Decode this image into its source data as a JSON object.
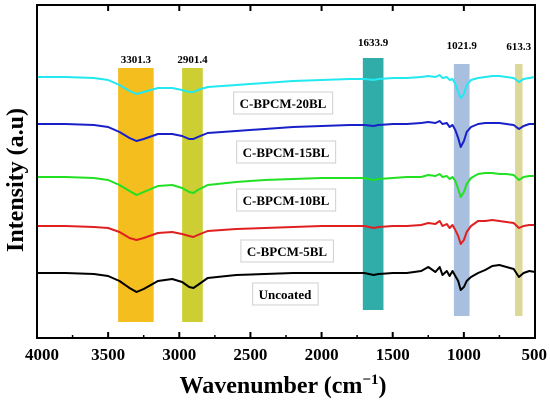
{
  "chart_data": {
    "type": "line",
    "title": "",
    "xlabel": "Wavenumber (cm",
    "xlabel_sup": "−1",
    "xlabel_close": ")",
    "ylabel": "Intensity (a.u)",
    "xlim": [
      4000,
      500
    ],
    "x_reversed": true,
    "y_ticks_shown": false,
    "x_ticks": [
      4000,
      3500,
      3000,
      2500,
      2000,
      1500,
      1000,
      500
    ],
    "annotations": [
      {
        "label": "3301.3",
        "from": 3430,
        "to": 3180,
        "color": "#f2b705"
      },
      {
        "label": "2901.4",
        "from": 2980,
        "to": 2835,
        "color": "#c8c81e"
      },
      {
        "label": "1633.9",
        "from": 1710,
        "to": 1565,
        "color": "#1aa3a0"
      },
      {
        "label": "1021.9",
        "from": 1070,
        "to": 960,
        "color": "#9fb8dc"
      },
      {
        "label": "613.3",
        "from": 640,
        "to": 588,
        "color": "#d8d48c"
      }
    ],
    "series": [
      {
        "name": "Uncoated",
        "color": "#000000",
        "x": [
          4000,
          3800,
          3600,
          3500,
          3420,
          3350,
          3301,
          3250,
          3150,
          3050,
          2980,
          2930,
          2901,
          2870,
          2800,
          2600,
          2400,
          2200,
          2000,
          1800,
          1700,
          1634,
          1600,
          1500,
          1400,
          1300,
          1250,
          1200,
          1170,
          1150,
          1120,
          1100,
          1080,
          1060,
          1040,
          1022,
          1000,
          980,
          950,
          900,
          850,
          800,
          750,
          700,
          650,
          613,
          580,
          540,
          500
        ],
        "y": [
          0,
          0,
          -1,
          -3,
          -8,
          -15,
          -19,
          -16,
          -8,
          -6,
          -9,
          -14,
          -15,
          -12,
          -5,
          -2,
          -1,
          0,
          0,
          0,
          0,
          -2,
          -1,
          0,
          0,
          2,
          6,
          1,
          6,
          -2,
          2,
          -3,
          2,
          -3,
          -8,
          -17,
          -14,
          -8,
          -4,
          0,
          3,
          7,
          8,
          6,
          4,
          -4,
          0,
          2,
          1
        ]
      },
      {
        "name": "C-BPCM-5BL",
        "color": "#e02020",
        "x": [
          4000,
          3800,
          3600,
          3500,
          3420,
          3350,
          3301,
          3250,
          3150,
          3050,
          2980,
          2930,
          2901,
          2870,
          2800,
          2600,
          2400,
          2200,
          2000,
          1800,
          1700,
          1634,
          1600,
          1500,
          1400,
          1300,
          1250,
          1200,
          1170,
          1150,
          1120,
          1100,
          1080,
          1060,
          1040,
          1022,
          1000,
          980,
          950,
          900,
          850,
          800,
          750,
          700,
          650,
          613,
          580,
          540,
          500
        ],
        "y": [
          0,
          0,
          -1,
          -2,
          -6,
          -12,
          -14,
          -12,
          -7,
          -6,
          -8,
          -10,
          -11,
          -9,
          -5,
          -3,
          -2,
          -1,
          0,
          0,
          0,
          -2,
          -1,
          0,
          0,
          1,
          3,
          2,
          5,
          0,
          2,
          -2,
          1,
          -4,
          -10,
          -18,
          -14,
          -6,
          0,
          5,
          5,
          6,
          5,
          4,
          3,
          -2,
          0,
          1,
          1
        ]
      },
      {
        "name": "C-BPCM-10BL",
        "color": "#22e022",
        "x": [
          4000,
          3800,
          3600,
          3500,
          3420,
          3350,
          3301,
          3250,
          3150,
          3050,
          2980,
          2930,
          2901,
          2870,
          2800,
          2600,
          2400,
          2200,
          2000,
          1800,
          1700,
          1634,
          1600,
          1500,
          1400,
          1300,
          1250,
          1200,
          1170,
          1150,
          1120,
          1100,
          1080,
          1060,
          1040,
          1022,
          1000,
          980,
          950,
          900,
          850,
          800,
          750,
          700,
          650,
          613,
          580,
          540,
          500
        ],
        "y": [
          0,
          0,
          -1,
          -3,
          -8,
          -14,
          -18,
          -15,
          -9,
          -8,
          -11,
          -15,
          -16,
          -13,
          -8,
          -5,
          -3,
          -2,
          -1,
          -1,
          -1,
          -3,
          -2,
          -1,
          0,
          0,
          2,
          1,
          3,
          0,
          1,
          -2,
          0,
          -4,
          -12,
          -20,
          -15,
          -7,
          -1,
          3,
          4,
          4,
          3,
          3,
          2,
          -3,
          0,
          1,
          1
        ]
      },
      {
        "name": "C-BPCM-15BL",
        "color": "#1a20c8",
        "x": [
          4000,
          3800,
          3600,
          3500,
          3420,
          3350,
          3301,
          3250,
          3150,
          3050,
          2980,
          2930,
          2901,
          2870,
          2800,
          2600,
          2400,
          2200,
          2000,
          1800,
          1700,
          1634,
          1600,
          1500,
          1400,
          1300,
          1250,
          1200,
          1170,
          1150,
          1120,
          1100,
          1080,
          1060,
          1040,
          1022,
          1000,
          980,
          950,
          900,
          850,
          800,
          750,
          700,
          650,
          613,
          580,
          540,
          500
        ],
        "y": [
          0,
          0,
          -1,
          -3,
          -8,
          -14,
          -17,
          -15,
          -10,
          -10,
          -12,
          -15,
          -15,
          -13,
          -9,
          -7,
          -5,
          -3,
          -2,
          -1,
          -1,
          -2,
          -1,
          0,
          0,
          1,
          2,
          1,
          3,
          0,
          1,
          -3,
          -1,
          -6,
          -14,
          -23,
          -17,
          -8,
          -3,
          0,
          1,
          1,
          1,
          0,
          -1,
          -5,
          -2,
          0,
          0
        ]
      },
      {
        "name": "C-BPCM-20BL",
        "color": "#22e8f0",
        "x": [
          4000,
          3800,
          3600,
          3500,
          3420,
          3350,
          3301,
          3250,
          3150,
          3050,
          2980,
          2930,
          2901,
          2870,
          2800,
          2600,
          2400,
          2200,
          2000,
          1800,
          1700,
          1634,
          1600,
          1500,
          1400,
          1300,
          1250,
          1200,
          1170,
          1150,
          1120,
          1100,
          1080,
          1060,
          1040,
          1022,
          1000,
          980,
          950,
          900,
          850,
          800,
          750,
          700,
          650,
          613,
          580,
          540,
          500
        ],
        "y": [
          0,
          0,
          -1,
          -3,
          -8,
          -14,
          -17,
          -15,
          -11,
          -11,
          -13,
          -15,
          -15,
          -13,
          -10,
          -8,
          -6,
          -4,
          -3,
          -2,
          -2,
          -3,
          -2,
          -1,
          -1,
          0,
          1,
          0,
          2,
          -1,
          0,
          -3,
          -2,
          -7,
          -15,
          -21,
          -17,
          -8,
          -3,
          -1,
          0,
          1,
          1,
          0,
          -1,
          -5,
          -2,
          -1,
          0
        ]
      }
    ]
  }
}
